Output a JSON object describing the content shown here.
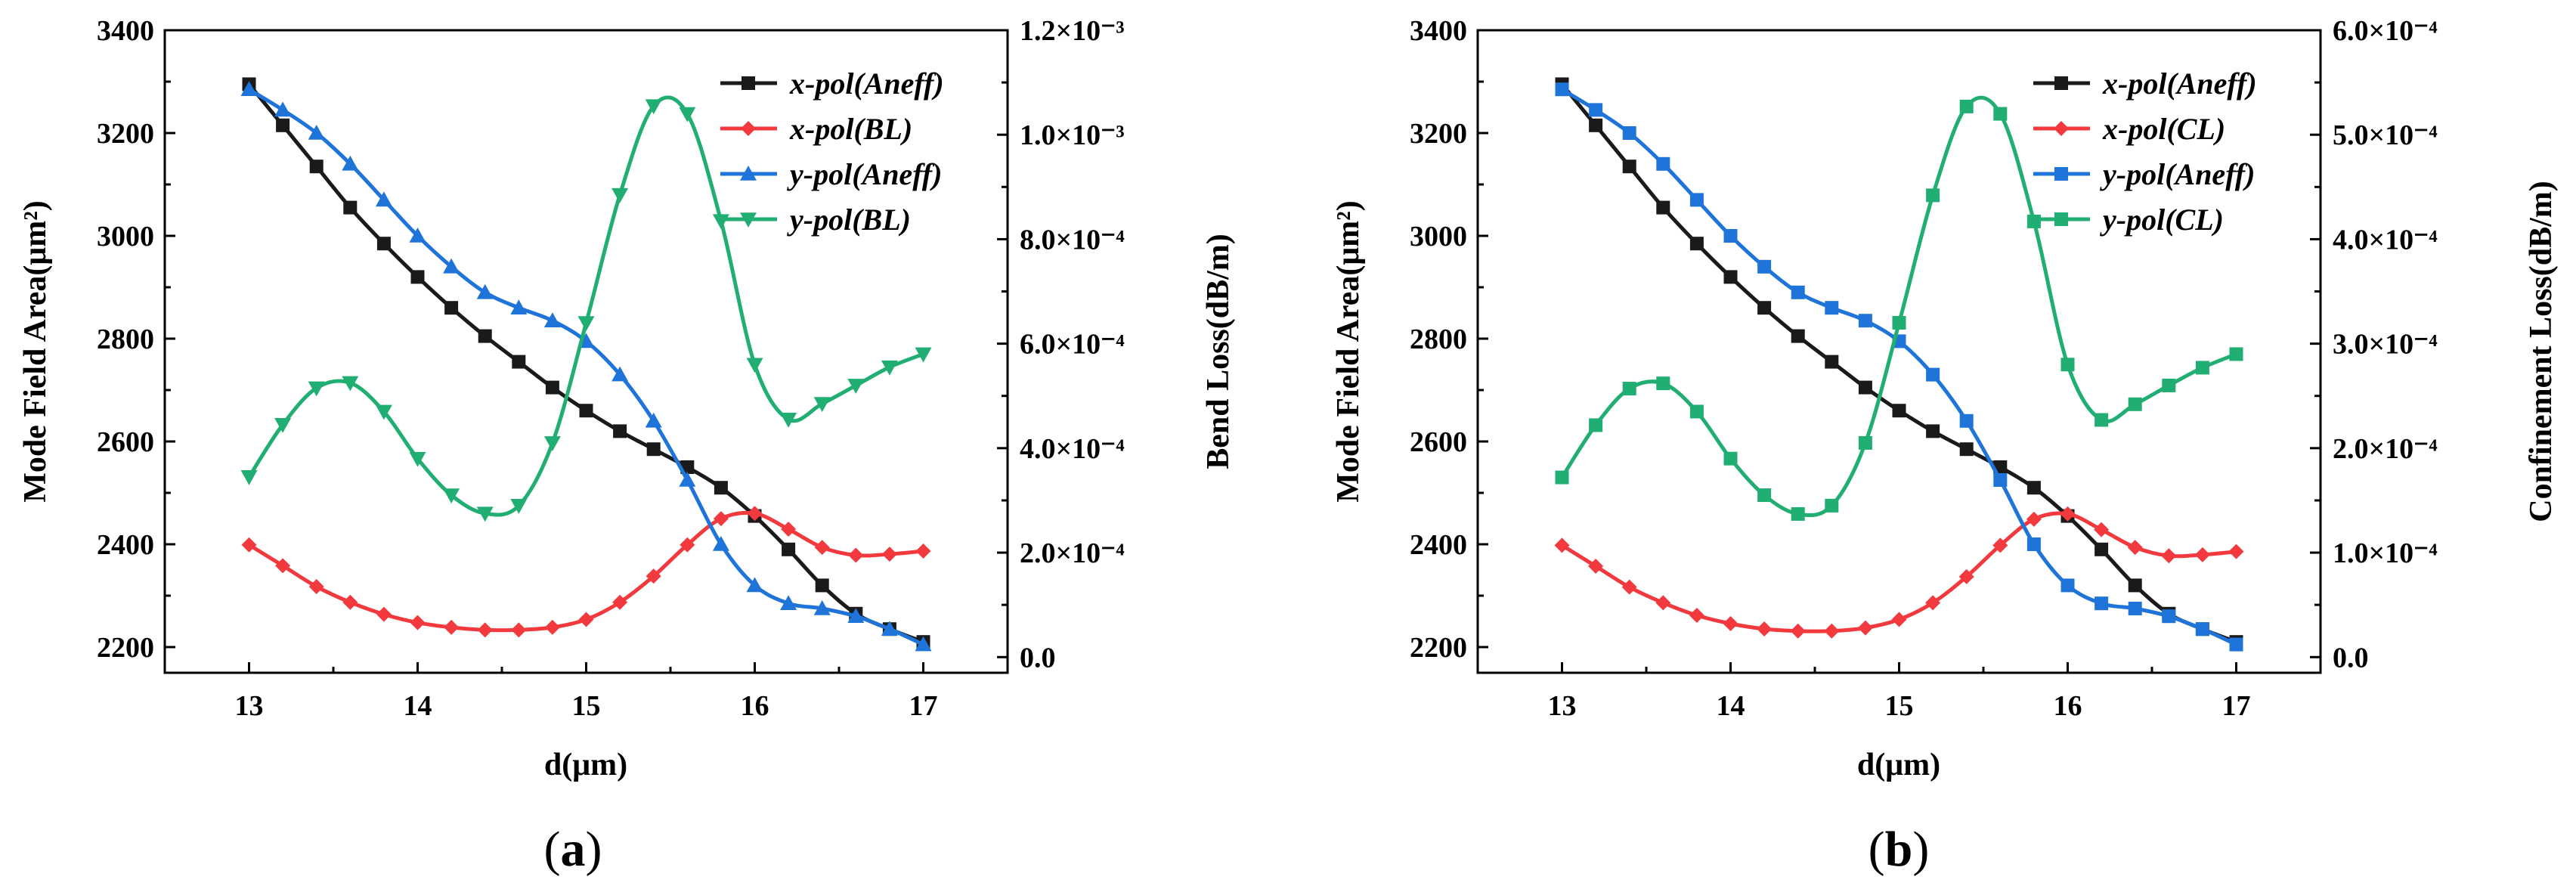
{
  "colors": {
    "black": "#1a1a1a",
    "red": "#f2393d",
    "blue": "#1f74d9",
    "green": "#21ae72"
  },
  "panels": [
    {
      "label_open": "(",
      "label_letter": "a",
      "label_close": ")",
      "xlabel": "d(μm)",
      "ylabel_left": "Mode Field Area(μm²)",
      "ylabel_right": "Bend Loss(dB/m)",
      "x_ticks": [
        "13",
        "14",
        "15",
        "16",
        "17"
      ],
      "y_left_ticks": [
        "2200",
        "2400",
        "2600",
        "2800",
        "3000",
        "3200",
        "3400"
      ],
      "y_right_ticks": [
        "0.0",
        "2.0×10⁻⁴",
        "4.0×10⁻⁴",
        "6.0×10⁻⁴",
        "8.0×10⁻⁴",
        "1.0×10⁻³",
        "1.2×10⁻³"
      ],
      "legend": [
        "x-pol(Aneff)",
        "x-pol(BL)",
        "y-pol(Aneff)",
        "y-pol(BL)"
      ]
    },
    {
      "label_open": "(",
      "label_letter": "b",
      "label_close": ")",
      "xlabel": "d(μm)",
      "ylabel_left": "Mode Field Area(μm²)",
      "ylabel_right": "Confinement Loss(dB/m)",
      "x_ticks": [
        "13",
        "14",
        "15",
        "16",
        "17"
      ],
      "y_left_ticks": [
        "2200",
        "2400",
        "2600",
        "2800",
        "3000",
        "3200",
        "3400"
      ],
      "y_right_ticks": [
        "0.0",
        "1.0×10⁻⁴",
        "2.0×10⁻⁴",
        "3.0×10⁻⁴",
        "4.0×10⁻⁴",
        "5.0×10⁻⁴",
        "6.0×10⁻⁴"
      ],
      "legend": [
        "x-pol(Aneff)",
        "x-pol(CL)",
        "y-pol(Aneff)",
        "y-pol(CL)"
      ]
    }
  ],
  "chart_data": [
    {
      "type": "line",
      "xlabel": "d(μm)",
      "ylabel": "Mode Field Area(μm²)",
      "y2label": "Bend Loss(dB/m)",
      "xlim": [
        12.5,
        17.5
      ],
      "ylim": [
        2150,
        3400
      ],
      "y2lim": [
        -3e-05,
        0.0012
      ],
      "grid": false,
      "legend_position": "top-right",
      "x": [
        13.0,
        13.2,
        13.4,
        13.6,
        13.8,
        14.0,
        14.2,
        14.4,
        14.6,
        14.8,
        15.0,
        15.2,
        15.4,
        15.6,
        15.8,
        16.0,
        16.2,
        16.4,
        16.6,
        16.8,
        17.0
      ],
      "series": [
        {
          "name": "x-pol(Aneff)",
          "axis": "left",
          "color": "#1a1a1a",
          "marker": "square",
          "values": [
            3295,
            3215,
            3135,
            3055,
            2985,
            2920,
            2860,
            2805,
            2755,
            2705,
            2660,
            2620,
            2585,
            2550,
            2510,
            2455,
            2390,
            2320,
            2265,
            2235,
            2210
          ]
        },
        {
          "name": "x-pol(BL)",
          "axis": "right",
          "color": "#f2393d",
          "marker": "diamond",
          "values": [
            0.000215,
            0.000175,
            0.000135,
            0.000105,
            8.2e-05,
            6.6e-05,
            5.7e-05,
            5.2e-05,
            5.2e-05,
            5.7e-05,
            7.2e-05,
            0.000105,
            0.000155,
            0.000215,
            0.000265,
            0.000275,
            0.000245,
            0.00021,
            0.000195,
            0.000197,
            0.000203
          ]
        },
        {
          "name": "y-pol(Aneff)",
          "axis": "left",
          "color": "#1f74d9",
          "marker": "triangle",
          "values": [
            3285,
            3245,
            3200,
            3140,
            3070,
            3000,
            2940,
            2890,
            2860,
            2835,
            2795,
            2730,
            2640,
            2525,
            2400,
            2320,
            2285,
            2275,
            2260,
            2235,
            2205
          ]
        },
        {
          "name": "y-pol(BL)",
          "axis": "right",
          "color": "#21ae72",
          "marker": "triangle-down",
          "values": [
            0.000345,
            0.000445,
            0.000515,
            0.000525,
            0.00047,
            0.00038,
            0.00031,
            0.000275,
            0.00029,
            0.00041,
            0.00064,
            0.000885,
            0.001055,
            0.00104,
            0.000835,
            0.00056,
            0.000455,
            0.000485,
            0.00052,
            0.000555,
            0.00058
          ]
        }
      ]
    },
    {
      "type": "line",
      "xlabel": "d(μm)",
      "ylabel": "Mode Field Area(μm²)",
      "y2label": "Confinement Loss(dB/m)",
      "xlim": [
        12.5,
        17.5
      ],
      "ylim": [
        2150,
        3400
      ],
      "y2lim": [
        -1.5e-05,
        0.0006
      ],
      "grid": false,
      "legend_position": "top-right",
      "x": [
        13.0,
        13.2,
        13.4,
        13.6,
        13.8,
        14.0,
        14.2,
        14.4,
        14.6,
        14.8,
        15.0,
        15.2,
        15.4,
        15.6,
        15.8,
        16.0,
        16.2,
        16.4,
        16.6,
        16.8,
        17.0
      ],
      "series": [
        {
          "name": "x-pol(Aneff)",
          "axis": "left",
          "color": "#1a1a1a",
          "marker": "square",
          "values": [
            3295,
            3215,
            3135,
            3055,
            2985,
            2920,
            2860,
            2805,
            2755,
            2705,
            2660,
            2620,
            2585,
            2550,
            2510,
            2455,
            2390,
            2320,
            2265,
            2235,
            2210
          ]
        },
        {
          "name": "x-pol(CL)",
          "axis": "right",
          "color": "#f2393d",
          "marker": "diamond",
          "values": [
            0.000107,
            8.7e-05,
            6.7e-05,
            5.2e-05,
            4e-05,
            3.2e-05,
            2.7e-05,
            2.5e-05,
            2.5e-05,
            2.8e-05,
            3.6e-05,
            5.2e-05,
            7.7e-05,
            0.000107,
            0.000132,
            0.000137,
            0.000122,
            0.000105,
            9.7e-05,
            9.8e-05,
            0.000101
          ]
        },
        {
          "name": "y-pol(Aneff)",
          "axis": "left",
          "color": "#1f74d9",
          "marker": "square",
          "values": [
            3285,
            3245,
            3200,
            3140,
            3070,
            3000,
            2940,
            2890,
            2860,
            2835,
            2795,
            2730,
            2640,
            2525,
            2400,
            2320,
            2285,
            2275,
            2260,
            2235,
            2205
          ]
        },
        {
          "name": "y-pol(CL)",
          "axis": "right",
          "color": "#21ae72",
          "marker": "square",
          "values": [
            0.000172,
            0.000222,
            0.000257,
            0.000262,
            0.000235,
            0.00019,
            0.000155,
            0.000137,
            0.000145,
            0.000205,
            0.00032,
            0.000442,
            0.000527,
            0.00052,
            0.000417,
            0.00028,
            0.000227,
            0.000242,
            0.00026,
            0.000277,
            0.00029
          ]
        }
      ]
    }
  ]
}
